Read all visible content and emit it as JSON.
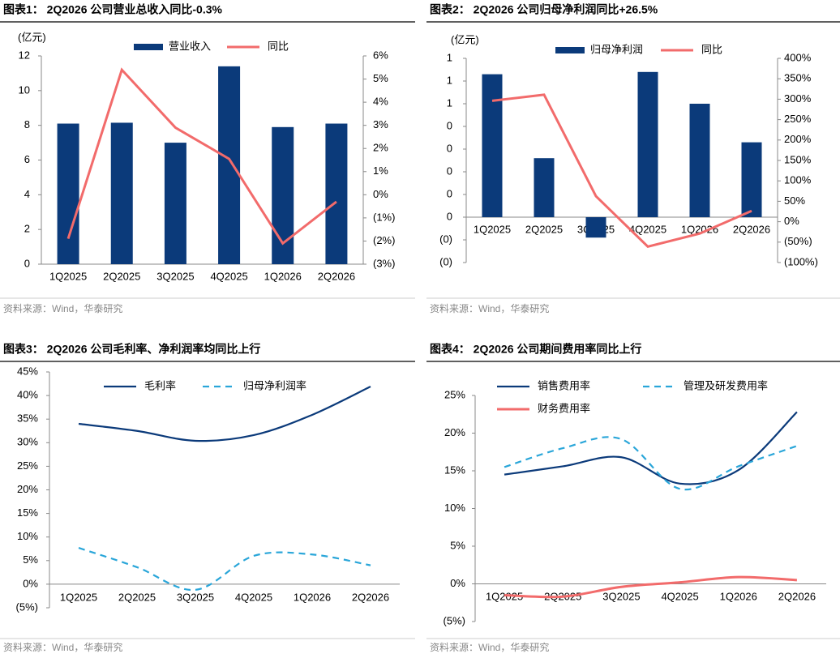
{
  "chart_data": [
    {
      "type": "bar",
      "title": "图表1：  2Q2026 公司营业总收入同比-0.3%",
      "ylabel": "(亿元)",
      "categories": [
        "1Q2025",
        "2Q2025",
        "3Q2025",
        "4Q2025",
        "1Q2026",
        "2Q2026"
      ],
      "series": [
        {
          "name": "营业收入",
          "type": "bar",
          "color": "#0b3a7a",
          "values": [
            8.1,
            8.15,
            7.0,
            11.4,
            7.9,
            8.1
          ]
        },
        {
          "name": "同比",
          "type": "line",
          "axis": "y2",
          "color": "#f26b6b",
          "values": [
            -1.9,
            5.4,
            2.9,
            1.55,
            -2.1,
            -0.3
          ]
        }
      ],
      "ylim": [
        0,
        12
      ],
      "yticks": [
        0,
        2,
        4,
        6,
        8,
        10,
        12
      ],
      "y2lim": [
        -3,
        6
      ],
      "y2ticks": [
        {
          "value": -3,
          "label": "(3%)"
        },
        {
          "value": -2,
          "label": "(2%)"
        },
        {
          "value": -1,
          "label": "(1%)"
        },
        {
          "value": 0,
          "label": "0%"
        },
        {
          "value": 1,
          "label": "1%"
        },
        {
          "value": 2,
          "label": "2%"
        },
        {
          "value": 3,
          "label": "3%"
        },
        {
          "value": 4,
          "label": "4%"
        },
        {
          "value": 5,
          "label": "5%"
        },
        {
          "value": 6,
          "label": "6%"
        }
      ],
      "source": "资料来源：Wind，华泰研究"
    },
    {
      "type": "bar",
      "title": "图表2：  2Q2026 公司归母净利润同比+26.5%",
      "ylabel": "(亿元)",
      "categories": [
        "1Q2025",
        "2Q2025",
        "3Q2025",
        "4Q2025",
        "1Q2026",
        "2Q2026"
      ],
      "series": [
        {
          "name": "归母净利润",
          "type": "bar",
          "color": "#0b3a7a",
          "values": [
            0.63,
            0.26,
            -0.09,
            0.64,
            0.5,
            0.33
          ]
        },
        {
          "name": "同比",
          "type": "line",
          "axis": "y2",
          "color": "#f26b6b",
          "values": [
            296,
            311,
            62.5,
            -61,
            -29,
            26.5
          ]
        }
      ],
      "ylim": [
        -0.2,
        0.7
      ],
      "yticks": [
        {
          "value": -0.2,
          "label": "(0)"
        },
        {
          "value": -0.1,
          "label": "(0)"
        },
        {
          "value": 0,
          "label": "0"
        },
        {
          "value": 0.1,
          "label": "0"
        },
        {
          "value": 0.2,
          "label": "0"
        },
        {
          "value": 0.3,
          "label": "0"
        },
        {
          "value": 0.4,
          "label": "0"
        },
        {
          "value": 0.5,
          "label": "1"
        },
        {
          "value": 0.6,
          "label": "1"
        },
        {
          "value": 0.7,
          "label": "1"
        }
      ],
      "y2lim": [
        -100,
        400
      ],
      "y2ticks": [
        {
          "value": -100,
          "label": "(100%)"
        },
        {
          "value": -50,
          "label": "(50%)"
        },
        {
          "value": 0,
          "label": "0%"
        },
        {
          "value": 50,
          "label": "50%"
        },
        {
          "value": 100,
          "label": "100%"
        },
        {
          "value": 150,
          "label": "150%"
        },
        {
          "value": 200,
          "label": "200%"
        },
        {
          "value": 250,
          "label": "250%"
        },
        {
          "value": 300,
          "label": "300%"
        },
        {
          "value": 350,
          "label": "350%"
        },
        {
          "value": 400,
          "label": "400%"
        }
      ],
      "source": "资料来源：Wind，华泰研究"
    },
    {
      "type": "line",
      "smooth": true,
      "title": "图表3：  2Q2026 公司毛利率、净利润率均同比上行",
      "categories": [
        "1Q2025",
        "2Q2025",
        "3Q2025",
        "4Q2025",
        "1Q2026",
        "2Q2026"
      ],
      "series": [
        {
          "name": "毛利率",
          "color": "#0b3a7a",
          "style": "solid",
          "values": [
            34.0,
            32.5,
            30.4,
            31.6,
            35.9,
            41.9
          ]
        },
        {
          "name": "归母净利润率",
          "color": "#2aa6d9",
          "style": "dashed",
          "values": [
            7.7,
            3.6,
            -1.2,
            6.0,
            6.3,
            4.0
          ]
        }
      ],
      "ylim": [
        -5,
        45
      ],
      "yticks": [
        {
          "value": -5,
          "label": "(5%)"
        },
        {
          "value": 0,
          "label": "0%"
        },
        {
          "value": 5,
          "label": "5%"
        },
        {
          "value": 10,
          "label": "10%"
        },
        {
          "value": 15,
          "label": "15%"
        },
        {
          "value": 20,
          "label": "20%"
        },
        {
          "value": 25,
          "label": "25%"
        },
        {
          "value": 30,
          "label": "30%"
        },
        {
          "value": 35,
          "label": "35%"
        },
        {
          "value": 40,
          "label": "40%"
        },
        {
          "value": 45,
          "label": "45%"
        }
      ],
      "source": "资料来源：Wind，华泰研究"
    },
    {
      "type": "line",
      "smooth": true,
      "title": "图表4：  2Q2026 公司期间费用率同比上行",
      "categories": [
        "1Q2025",
        "2Q2025",
        "3Q2025",
        "4Q2025",
        "1Q2026",
        "2Q2026"
      ],
      "series": [
        {
          "name": "销售费用率",
          "color": "#0b3a7a",
          "style": "solid",
          "values": [
            14.5,
            15.6,
            16.8,
            13.3,
            15.1,
            22.8
          ]
        },
        {
          "name": "管理及研发费用率",
          "color": "#2aa6d9",
          "style": "dashed",
          "values": [
            15.5,
            18.0,
            19.2,
            12.6,
            15.6,
            18.3
          ]
        },
        {
          "name": "财务费用率",
          "color": "#f26b6b",
          "style": "solid",
          "values": [
            -1.5,
            -1.7,
            -0.4,
            0.2,
            0.9,
            0.5
          ]
        }
      ],
      "ylim": [
        -5,
        25
      ],
      "yticks": [
        {
          "value": -5,
          "label": "(5%)"
        },
        {
          "value": 0,
          "label": "0%"
        },
        {
          "value": 5,
          "label": "5%"
        },
        {
          "value": 10,
          "label": "10%"
        },
        {
          "value": 15,
          "label": "15%"
        },
        {
          "value": 20,
          "label": "20%"
        },
        {
          "value": 25,
          "label": "25%"
        }
      ],
      "source": "资料来源：Wind，华泰研究"
    }
  ]
}
